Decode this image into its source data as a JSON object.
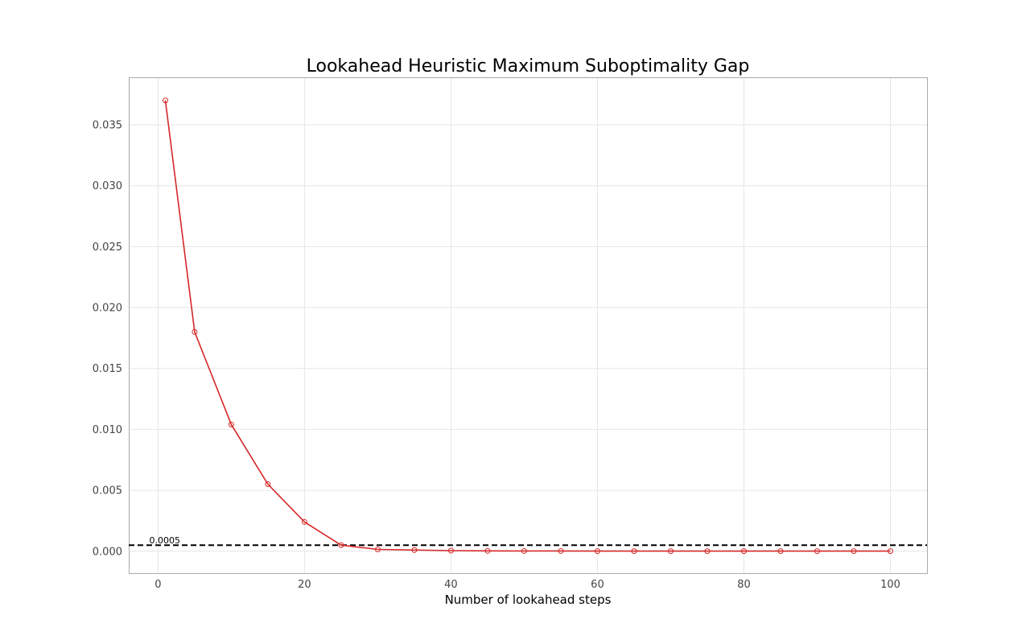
{
  "chart_data": {
    "type": "line",
    "title": "Lookahead Heuristic Maximum Suboptimality Gap",
    "xlabel": "Number of lookahead steps",
    "ylabel": "",
    "xlim": [
      -4,
      105
    ],
    "ylim": [
      -0.0018,
      0.0389
    ],
    "x_ticks": [
      0,
      20,
      40,
      60,
      80,
      100
    ],
    "y_ticks": [
      0.0,
      0.005,
      0.01,
      0.015,
      0.02,
      0.025,
      0.03,
      0.035
    ],
    "x_tick_labels": [
      "0",
      "20",
      "40",
      "60",
      "80",
      "100"
    ],
    "y_tick_labels": [
      "0.000",
      "0.005",
      "0.010",
      "0.015",
      "0.020",
      "0.025",
      "0.030",
      "0.035"
    ],
    "grid": true,
    "series": [
      {
        "color": "#d62728",
        "marker": "open-circle",
        "x": [
          1,
          5,
          10,
          15,
          20,
          25,
          30,
          35,
          40,
          45,
          50,
          55,
          60,
          65,
          70,
          75,
          80,
          85,
          90,
          95,
          100
        ],
        "y": [
          0.037,
          0.018,
          0.0104,
          0.0055,
          0.0024,
          0.0005,
          0.00015,
          0.0001,
          5e-05,
          3e-05,
          2e-05,
          2e-05,
          1e-05,
          1e-05,
          1e-05,
          1e-05,
          1e-05,
          1e-05,
          1e-05,
          1e-05,
          1e-05
        ]
      }
    ],
    "threshold": {
      "value": 0.0005,
      "label": "0.0005",
      "color": "#000000",
      "style": "dashed"
    },
    "colors": {
      "grid": "#e6e6e6",
      "frame": "#aaaaaa",
      "tick_text": "#444444"
    }
  }
}
